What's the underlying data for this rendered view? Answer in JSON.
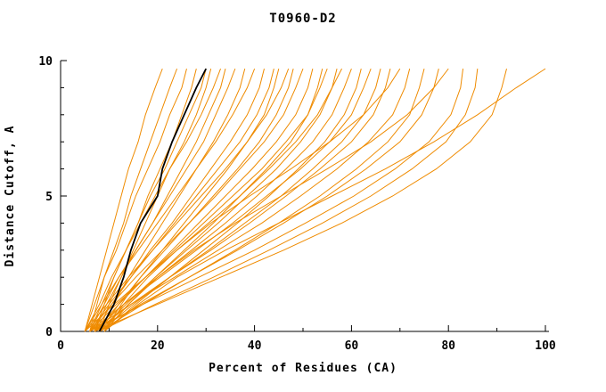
{
  "chart_data": {
    "type": "line",
    "title": "T0960-D2",
    "xlabel": "Percent of Residues (CA)",
    "ylabel": "Distance Cutoff, A",
    "xlim": [
      0,
      100
    ],
    "ylim": [
      0,
      10
    ],
    "x_major_ticks": [
      0,
      20,
      40,
      60,
      80,
      100
    ],
    "x_minor_step": 10,
    "y_major_ticks": [
      0,
      5,
      10
    ],
    "y_minor_step": 1,
    "grid": false,
    "legend": "none",
    "colors": {
      "model": "#ef8b00",
      "highlight": "#000000",
      "axis": "#000000"
    },
    "y_levels": [
      0,
      1,
      2,
      3,
      4,
      5,
      6,
      7,
      8,
      9,
      9.7
    ],
    "highlight_series": {
      "x": [
        8,
        11,
        13,
        14.5,
        16.5,
        20,
        21,
        23,
        25.5,
        28,
        30
      ]
    },
    "series": [
      {
        "x": [
          5,
          6.5,
          8,
          9.5,
          11,
          12.5,
          14,
          16,
          17.5,
          19.5,
          21
        ]
      },
      {
        "x": [
          6,
          7.5,
          9,
          11,
          13,
          14.5,
          16.5,
          18.5,
          20.5,
          22.5,
          24
        ]
      },
      {
        "x": [
          5,
          7,
          9,
          11.5,
          13.5,
          15.5,
          18,
          20.5,
          22.5,
          25,
          26
        ]
      },
      {
        "x": [
          7,
          9,
          11,
          13.5,
          16,
          18,
          20.5,
          23,
          25,
          27,
          28
        ]
      },
      {
        "x": [
          6,
          8.5,
          11,
          13.5,
          16,
          18.5,
          21.5,
          24,
          26.5,
          29,
          30
        ]
      },
      {
        "x": [
          8,
          10,
          12.5,
          15,
          17.5,
          20,
          22.5,
          25.5,
          28,
          30,
          31
        ]
      },
      {
        "x": [
          5,
          8,
          10.5,
          13.5,
          16.5,
          19.5,
          22.5,
          26,
          29,
          31.5,
          33
        ]
      },
      {
        "x": [
          7,
          9.5,
          12.5,
          15.5,
          19,
          22,
          25,
          28,
          30.5,
          33,
          34
        ]
      },
      {
        "x": [
          6,
          9,
          12,
          15.5,
          19,
          22.5,
          26,
          29.5,
          32,
          34.5,
          36
        ]
      },
      {
        "x": [
          8,
          11,
          14,
          17.5,
          21,
          24.5,
          28,
          31.5,
          34.5,
          37,
          38
        ]
      },
      {
        "x": [
          5,
          8.5,
          12,
          16,
          20,
          24,
          28,
          32,
          35.5,
          38.5,
          40
        ]
      },
      {
        "x": [
          7,
          10.5,
          14.5,
          18.5,
          23,
          27,
          31,
          35,
          38.5,
          41,
          42
        ]
      },
      {
        "x": [
          6,
          10,
          14.5,
          19,
          23.5,
          28,
          32.5,
          37,
          40.5,
          43,
          44
        ]
      },
      {
        "x": [
          9,
          12.5,
          16.5,
          21,
          25.5,
          30,
          34.5,
          38.5,
          42,
          44,
          45
        ]
      },
      {
        "x": [
          5,
          9.5,
          14,
          19,
          24,
          29,
          34,
          38.5,
          42.5,
          45.5,
          47
        ]
      },
      {
        "x": [
          8,
          12,
          16.5,
          21.5,
          26.5,
          31.5,
          36.5,
          41,
          44.5,
          47,
          48
        ]
      },
      {
        "x": [
          6,
          10.5,
          15.5,
          21,
          26.5,
          32,
          37,
          42,
          46,
          48.5,
          50
        ]
      },
      {
        "x": [
          7,
          12,
          17.5,
          23,
          28.5,
          34,
          39.5,
          44.5,
          48.5,
          51,
          52
        ]
      },
      {
        "x": [
          9,
          14,
          19.5,
          25.5,
          31.5,
          37,
          42.5,
          47.5,
          51,
          53,
          54
        ]
      },
      {
        "x": [
          6,
          11.5,
          17.5,
          23.5,
          29.5,
          35.5,
          41.5,
          46.5,
          51,
          53.5,
          55
        ]
      },
      {
        "x": [
          8,
          13.5,
          19.5,
          26,
          32.5,
          38.5,
          44.5,
          49.5,
          53.5,
          56,
          57
        ]
      },
      {
        "x": [
          5,
          11,
          17.5,
          24,
          30.5,
          37,
          43,
          48.5,
          53,
          56,
          58
        ]
      },
      {
        "x": [
          7,
          13,
          20,
          27,
          34,
          40.5,
          46.5,
          52,
          56,
          58.5,
          60
        ]
      },
      {
        "x": [
          9,
          15.5,
          22.5,
          29.5,
          36.5,
          43,
          49,
          54.5,
          58.5,
          61,
          62
        ]
      },
      {
        "x": [
          6,
          13,
          20.5,
          28,
          35.5,
          42.5,
          49.5,
          55.5,
          60,
          62.5,
          64
        ]
      },
      {
        "x": [
          8,
          15,
          22.5,
          30.5,
          38,
          45.5,
          52,
          58,
          62.5,
          65,
          66
        ]
      },
      {
        "x": [
          7,
          14.5,
          22.5,
          31,
          39,
          46.5,
          53.5,
          60,
          64.5,
          67,
          68
        ]
      },
      {
        "x": [
          9,
          13,
          18,
          24,
          31,
          39,
          47.5,
          55.5,
          62.5,
          67.5,
          70
        ]
      },
      {
        "x": [
          6,
          14.5,
          23.5,
          32.5,
          41.5,
          49.5,
          57,
          63.5,
          68.5,
          71,
          72
        ]
      },
      {
        "x": [
          8,
          17,
          26.5,
          36,
          45,
          53.5,
          61,
          67.5,
          72,
          74,
          75
        ]
      },
      {
        "x": [
          7,
          16.5,
          26.5,
          36.5,
          46,
          55,
          63,
          70,
          74.5,
          77,
          78
        ]
      },
      {
        "x": [
          9,
          14,
          20,
          27.5,
          36,
          45.5,
          55,
          64,
          71.5,
          77,
          80
        ]
      },
      {
        "x": [
          6,
          17,
          28.5,
          40,
          50.5,
          60.5,
          69,
          76,
          80.5,
          82.5,
          83
        ]
      },
      {
        "x": [
          8,
          19.5,
          31.5,
          43,
          54,
          64,
          72.5,
          79.5,
          83.5,
          85.5,
          86
        ]
      },
      {
        "x": [
          7,
          20,
          33,
          46,
          58,
          68.5,
          77.5,
          84.5,
          89,
          91,
          92
        ]
      },
      {
        "x": [
          9,
          16,
          24,
          34,
          45,
          56,
          67,
          77,
          86,
          94,
          100
        ]
      }
    ]
  }
}
